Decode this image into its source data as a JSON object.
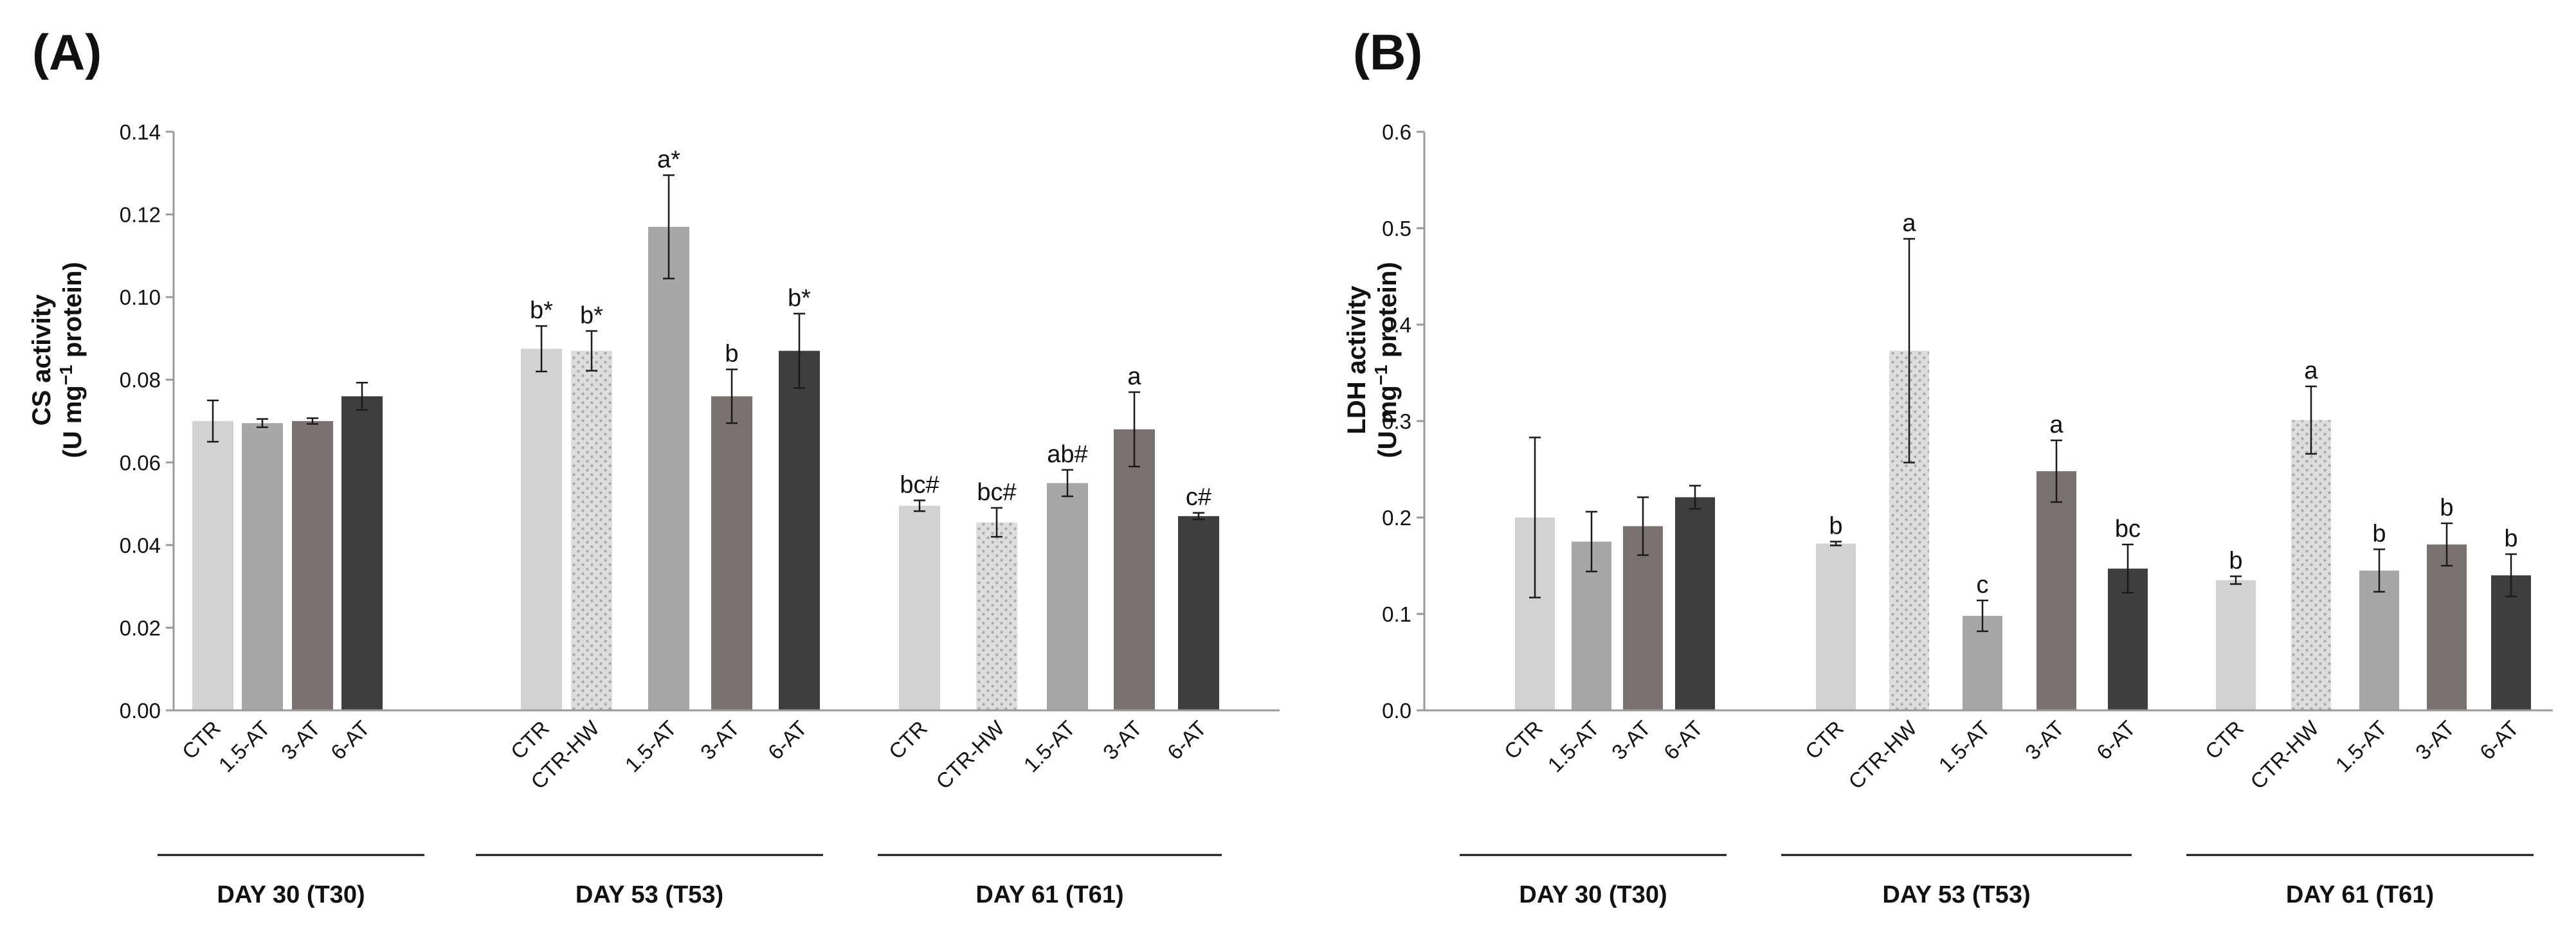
{
  "colors": {
    "CTR": "#d3d1d2",
    "CTR-HW": "#dddddd",
    "1.5-AT": "#a8a7a7",
    "3-AT": "#7a7171",
    "6-AT": "#3e3e3e",
    "axis": "#9a9a9a",
    "text": "#111111",
    "hatch_dot": "#a9a9a9"
  },
  "chart_data": [
    {
      "panel_label": "(A)",
      "type": "bar",
      "title": "",
      "ylabel_line1": "CS activity",
      "ylabel_line2_prefix": "(U mg",
      "ylabel_line2_sup": "−1",
      "ylabel_line2_suffix": " protein)",
      "ylim": [
        0,
        0.14
      ],
      "yticks": [
        "0.00",
        "0.02",
        "0.04",
        "0.06",
        "0.08",
        "0.10",
        "0.12",
        "0.14"
      ],
      "groups": [
        {
          "label": "DAY 30 (T30)",
          "bars": [
            {
              "category": "CTR",
              "value": 0.07,
              "error": 0.005,
              "letter": ""
            },
            {
              "category": "1.5-AT",
              "value": 0.0695,
              "error": 0.001,
              "letter": ""
            },
            {
              "category": "3-AT",
              "value": 0.07,
              "error": 0.0007,
              "letter": ""
            },
            {
              "category": "6-AT",
              "value": 0.076,
              "error": 0.0033,
              "letter": ""
            }
          ]
        },
        {
          "label": "DAY 53 (T53)",
          "bars": [
            {
              "category": "CTR",
              "value": 0.0875,
              "error": 0.0055,
              "letter": "b*"
            },
            {
              "category": "CTR-HW",
              "value": 0.087,
              "error": 0.0048,
              "letter": "b*"
            },
            {
              "category": "1.5-AT",
              "value": 0.117,
              "error": 0.0125,
              "letter": "a*"
            },
            {
              "category": "3-AT",
              "value": 0.076,
              "error": 0.0065,
              "letter": "b"
            },
            {
              "category": "6-AT",
              "value": 0.087,
              "error": 0.009,
              "letter": "b*"
            }
          ]
        },
        {
          "label": "DAY 61 (T61)",
          "bars": [
            {
              "category": "CTR",
              "value": 0.0495,
              "error": 0.0013,
              "letter": "bc#"
            },
            {
              "category": "CTR-HW",
              "value": 0.0455,
              "error": 0.0035,
              "letter": "bc#"
            },
            {
              "category": "1.5-AT",
              "value": 0.055,
              "error": 0.0032,
              "letter": "ab#"
            },
            {
              "category": "3-AT",
              "value": 0.068,
              "error": 0.009,
              "letter": "a"
            },
            {
              "category": "6-AT",
              "value": 0.047,
              "error": 0.0008,
              "letter": "c#"
            }
          ]
        }
      ]
    },
    {
      "panel_label": "(B)",
      "type": "bar",
      "title": "",
      "ylabel_line1": "LDH activity",
      "ylabel_line2_prefix": "(U mg",
      "ylabel_line2_sup": "−1",
      "ylabel_line2_suffix": " protein)",
      "ylim": [
        0,
        0.6
      ],
      "yticks": [
        "0.0",
        "0.1",
        "0.2",
        "0.3",
        "0.4",
        "0.5",
        "0.6"
      ],
      "groups": [
        {
          "label": "DAY 30 (T30)",
          "bars": [
            {
              "category": "CTR",
              "value": 0.2,
              "error": 0.083,
              "letter": ""
            },
            {
              "category": "1.5-AT",
              "value": 0.175,
              "error": 0.031,
              "letter": ""
            },
            {
              "category": "3-AT",
              "value": 0.191,
              "error": 0.03,
              "letter": ""
            },
            {
              "category": "6-AT",
              "value": 0.221,
              "error": 0.012,
              "letter": ""
            }
          ]
        },
        {
          "label": "DAY 53 (T53)",
          "bars": [
            {
              "category": "CTR",
              "value": 0.173,
              "error": 0.002,
              "letter": "b"
            },
            {
              "category": "CTR-HW",
              "value": 0.373,
              "error": 0.116,
              "letter": "a"
            },
            {
              "category": "1.5-AT",
              "value": 0.098,
              "error": 0.016,
              "letter": "c"
            },
            {
              "category": "3-AT",
              "value": 0.248,
              "error": 0.032,
              "letter": "a"
            },
            {
              "category": "6-AT",
              "value": 0.147,
              "error": 0.025,
              "letter": "bc"
            }
          ]
        },
        {
          "label": "DAY 61 (T61)",
          "bars": [
            {
              "category": "CTR",
              "value": 0.135,
              "error": 0.004,
              "letter": "b"
            },
            {
              "category": "CTR-HW",
              "value": 0.301,
              "error": 0.035,
              "letter": "a"
            },
            {
              "category": "1.5-AT",
              "value": 0.145,
              "error": 0.022,
              "letter": "b"
            },
            {
              "category": "3-AT",
              "value": 0.172,
              "error": 0.022,
              "letter": "b"
            },
            {
              "category": "6-AT",
              "value": 0.14,
              "error": 0.022,
              "letter": "b"
            }
          ]
        }
      ]
    }
  ]
}
